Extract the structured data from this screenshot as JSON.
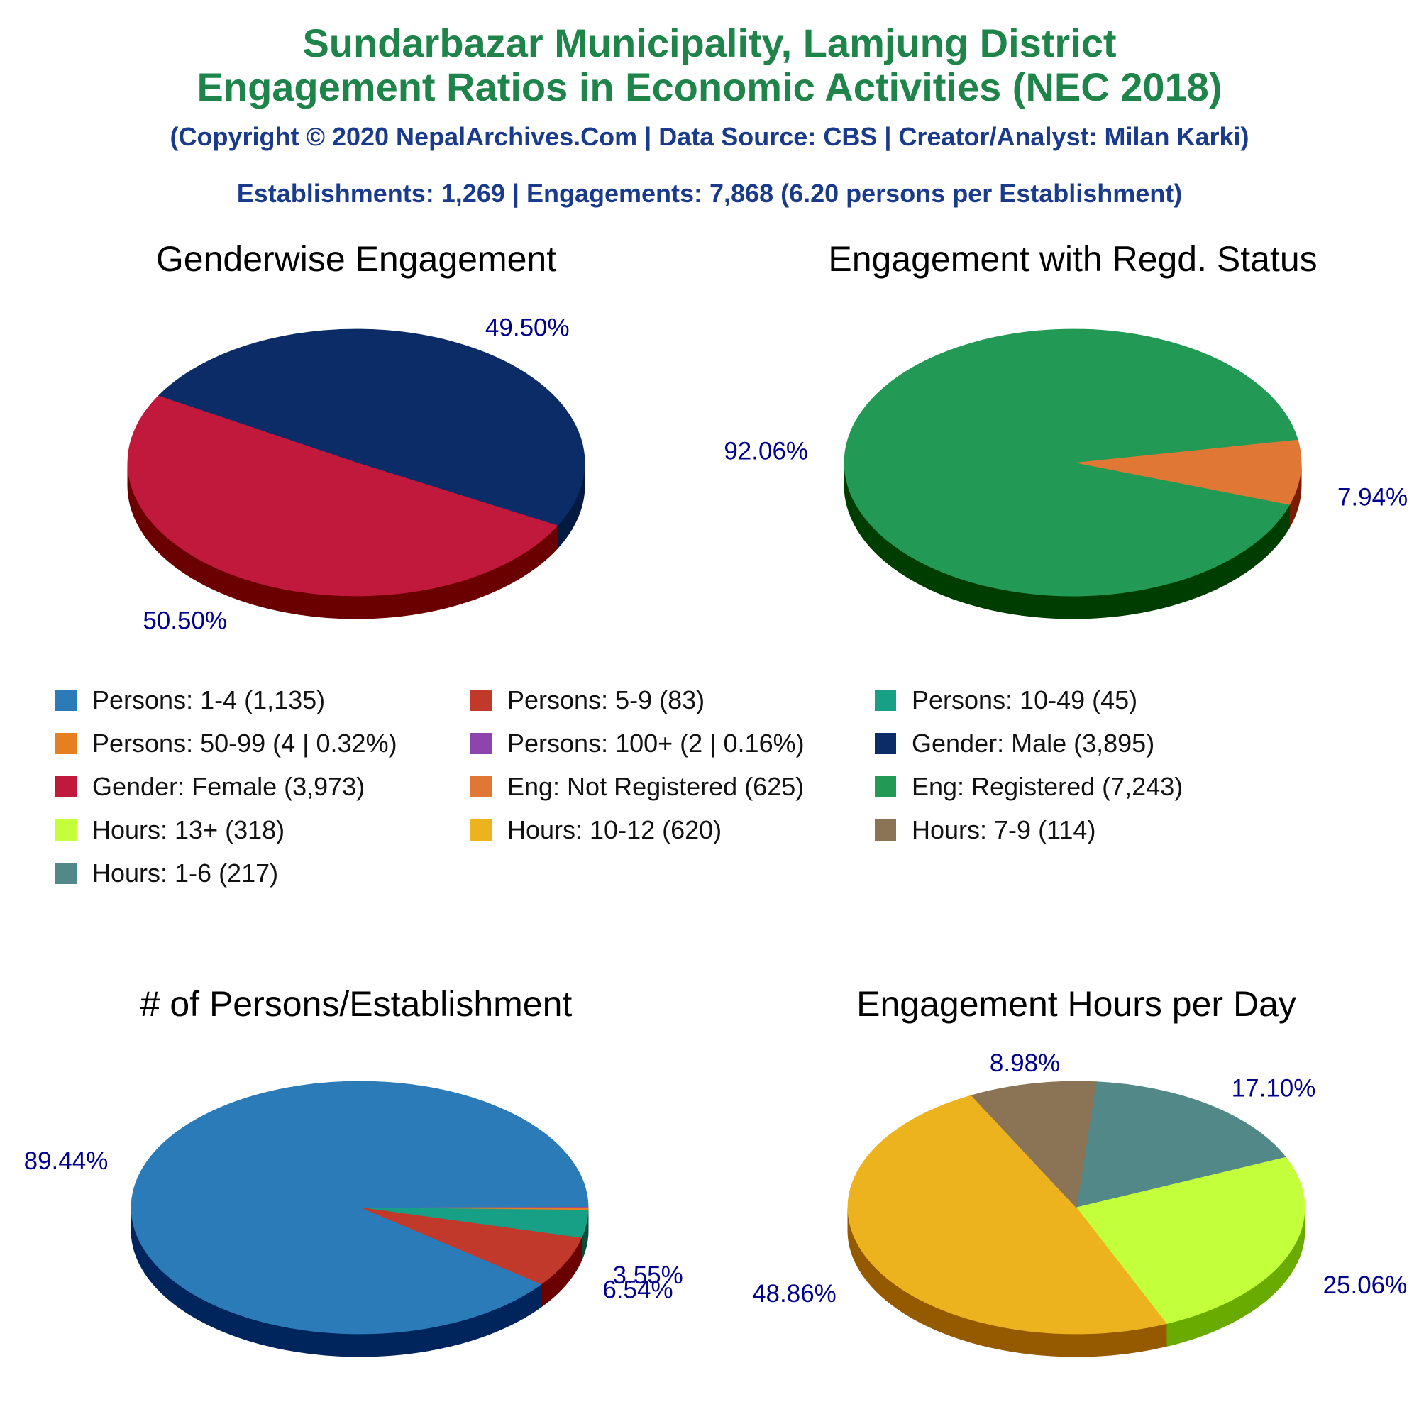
{
  "header": {
    "title_line1": "Sundarbazar Municipality, Lamjung District",
    "title_line2": "Engagement Ratios in Economic Activities (NEC 2018)",
    "copyright": "(Copyright © 2020 NepalArchives.Com | Data Source: CBS | Creator/Analyst: Milan Karki)",
    "summary": "Establishments: 1,269 | Engagements: 7,868 (6.20 persons per Establishment)"
  },
  "legend": [
    {
      "label": "Persons: 1-4 (1,135)",
      "color": "#2b7bb9"
    },
    {
      "label": "Persons: 5-9 (83)",
      "color": "#c0392b"
    },
    {
      "label": "Persons: 10-49 (45)",
      "color": "#17a085"
    },
    {
      "label": "Persons: 50-99 (4 | 0.32%)",
      "color": "#e67e22"
    },
    {
      "label": "Persons: 100+ (2 | 0.16%)",
      "color": "#8e44ad"
    },
    {
      "label": "Gender: Male (3,895)",
      "color": "#0b2c66"
    },
    {
      "label": "Gender: Female (3,973)",
      "color": "#c0193c"
    },
    {
      "label": "Eng: Not Registered (625)",
      "color": "#e07735"
    },
    {
      "label": "Eng: Registered (7,243)",
      "color": "#229954"
    },
    {
      "label": "Hours: 13+ (318)",
      "color": "#c3ff3a"
    },
    {
      "label": "Hours: 10-12 (620)",
      "color": "#ecb31f"
    },
    {
      "label": "Hours: 7-9 (114)",
      "color": "#8b7355"
    },
    {
      "label": "Hours: 1-6 (217)",
      "color": "#538888"
    }
  ],
  "chart_data": [
    {
      "type": "pie",
      "title": "Genderwise Engagement",
      "slices": [
        {
          "name": "Gender: Male",
          "value": 3895,
          "percent_label": "49.50%",
          "color": "#0b2c66",
          "side": "#051a40"
        },
        {
          "name": "Gender: Female",
          "value": 3973,
          "percent_label": "50.50%",
          "color": "#c0193c",
          "side": "#6b0000"
        }
      ]
    },
    {
      "type": "pie",
      "title": "Engagement with Regd. Status",
      "slices": [
        {
          "name": "Eng: Not Registered",
          "value": 625,
          "percent_label": "7.94%",
          "color": "#e07735",
          "side": "#7a1c00"
        },
        {
          "name": "Eng: Registered",
          "value": 7243,
          "percent_label": "92.06%",
          "color": "#229954",
          "side": "#003d00"
        }
      ]
    },
    {
      "type": "pie",
      "title": "# of Persons/Establishment",
      "slices": [
        {
          "name": "Persons: 100+",
          "value": 2,
          "percent_label": "",
          "color": "#8e44ad",
          "side": "#4a1a60"
        },
        {
          "name": "Persons: 50-99",
          "value": 4,
          "percent_label": "",
          "color": "#e67e22",
          "side": "#7a3a00"
        },
        {
          "name": "Persons: 10-49",
          "value": 45,
          "percent_label": "3.55%",
          "color": "#17a085",
          "side": "#004d3a"
        },
        {
          "name": "Persons: 5-9",
          "value": 83,
          "percent_label": "6.54%",
          "color": "#c0392b",
          "side": "#6b0000"
        },
        {
          "name": "Persons: 1-4",
          "value": 1135,
          "percent_label": "89.44%",
          "color": "#2b7bb9",
          "side": "#00245c"
        }
      ]
    },
    {
      "type": "pie",
      "title": "Engagement Hours per Day",
      "slices": [
        {
          "name": "Hours: 1-6",
          "value": 217,
          "percent_label": "17.10%",
          "color": "#538888",
          "side": "#2a4a4a"
        },
        {
          "name": "Hours: 13+",
          "value": 318,
          "percent_label": "25.06%",
          "color": "#c3ff3a",
          "side": "#6aab00"
        },
        {
          "name": "Hours: 10-12",
          "value": 620,
          "percent_label": "48.86%",
          "color": "#ecb31f",
          "side": "#955a00"
        },
        {
          "name": "Hours: 7-9",
          "value": 114,
          "percent_label": "8.98%",
          "color": "#8b7355",
          "side": "#4a3a20"
        }
      ]
    }
  ]
}
